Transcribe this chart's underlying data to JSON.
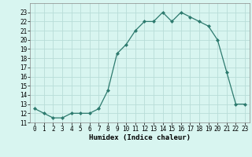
{
  "x": [
    0,
    1,
    2,
    3,
    4,
    5,
    6,
    7,
    8,
    9,
    10,
    11,
    12,
    13,
    14,
    15,
    16,
    17,
    18,
    19,
    20,
    21,
    22,
    23
  ],
  "y": [
    12.5,
    12.0,
    11.5,
    11.5,
    12.0,
    12.0,
    12.0,
    12.5,
    14.5,
    18.5,
    19.5,
    21.0,
    22.0,
    22.0,
    23.0,
    22.0,
    23.0,
    22.5,
    22.0,
    21.5,
    20.0,
    16.5,
    13.0,
    13.0
  ],
  "xlabel": "Humidex (Indice chaleur)",
  "line_color": "#2d7a6e",
  "marker_color": "#2d7a6e",
  "bg_color": "#d8f5f0",
  "grid_color": "#b8ddd8",
  "ylim": [
    11,
    24
  ],
  "xlim": [
    -0.5,
    23.5
  ],
  "yticks": [
    11,
    12,
    13,
    14,
    15,
    16,
    17,
    18,
    19,
    20,
    21,
    22,
    23
  ],
  "xticks": [
    0,
    1,
    2,
    3,
    4,
    5,
    6,
    7,
    8,
    9,
    10,
    11,
    12,
    13,
    14,
    15,
    16,
    17,
    18,
    19,
    20,
    21,
    22,
    23
  ],
  "ytick_fontsize": 5.5,
  "xtick_fontsize": 5.5,
  "xlabel_fontsize": 6.5
}
